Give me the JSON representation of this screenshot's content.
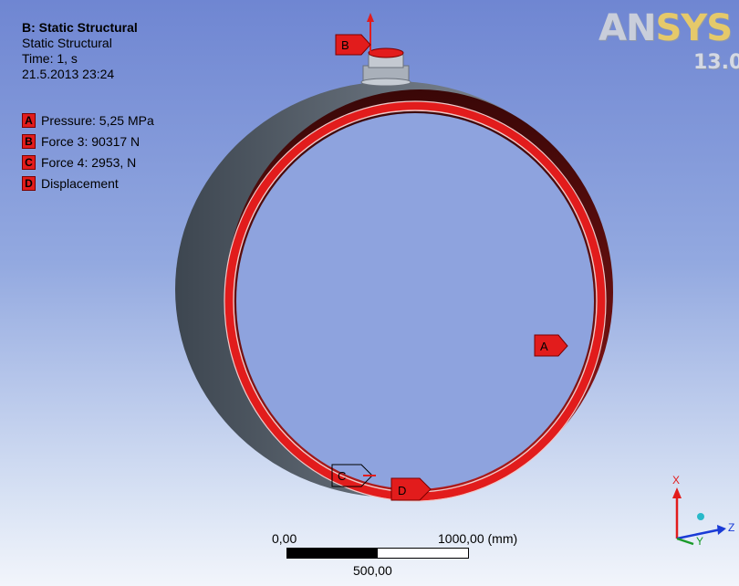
{
  "header": {
    "title": "B: Static Structural",
    "subtitle": "Static Structural",
    "time": "Time: 1, s",
    "datetime": "21.5.2013 23:24"
  },
  "legend": [
    {
      "tag": "A",
      "label": "Pressure: 5,25 MPa"
    },
    {
      "tag": "B",
      "label": "Force 3: 90317 N"
    },
    {
      "tag": "C",
      "label": "Force 4: 2953, N"
    },
    {
      "tag": "D",
      "label": "Displacement"
    }
  ],
  "markers": {
    "a": "A",
    "b": "B",
    "c": "C",
    "d": "D"
  },
  "logo": {
    "brand_a": "AN",
    "brand_b": "SYS",
    "version": "13.0"
  },
  "scale": {
    "left": "0,00",
    "right": "1000,00 (mm)",
    "mid": "500,00"
  },
  "triad": {
    "x": "X",
    "y": "Y",
    "z": "Z"
  },
  "colors": {
    "load_red": "#e21c1c",
    "ring_gray": "#5e6771",
    "inner_dark_red": "#5a0c0c"
  }
}
